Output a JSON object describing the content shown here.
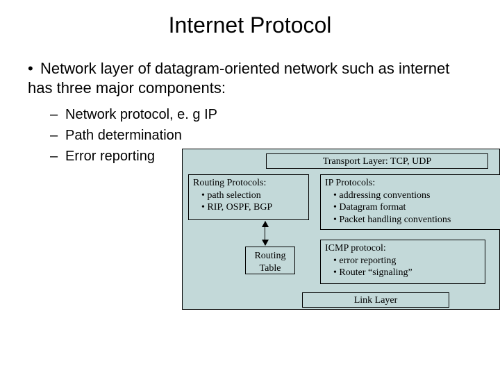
{
  "title": "Internet Protocol",
  "bullet": {
    "text": "Network layer of datagram-oriented network such as internet has three major components:",
    "subs": [
      "Network protocol, e. g IP",
      "Path determination",
      "Error reporting"
    ]
  },
  "diagram": {
    "background_color": "#c3d9d9",
    "border_color": "#000000",
    "font_family": "Times New Roman",
    "transport": {
      "text": "Transport Layer: TCP, UDP"
    },
    "routing": {
      "title": "Routing Protocols:",
      "items": [
        "path selection",
        "RIP, OSPF, BGP"
      ]
    },
    "ip": {
      "title": "IP Protocols:",
      "items": [
        "addressing conventions",
        "Datagram format",
        "Packet handling conventions"
      ]
    },
    "rtable": {
      "line1": "Routing",
      "line2": "Table"
    },
    "icmp": {
      "title": "ICMP protocol:",
      "items": [
        "error reporting",
        "Router “signaling”"
      ]
    },
    "link": {
      "text": "Link Layer"
    }
  }
}
